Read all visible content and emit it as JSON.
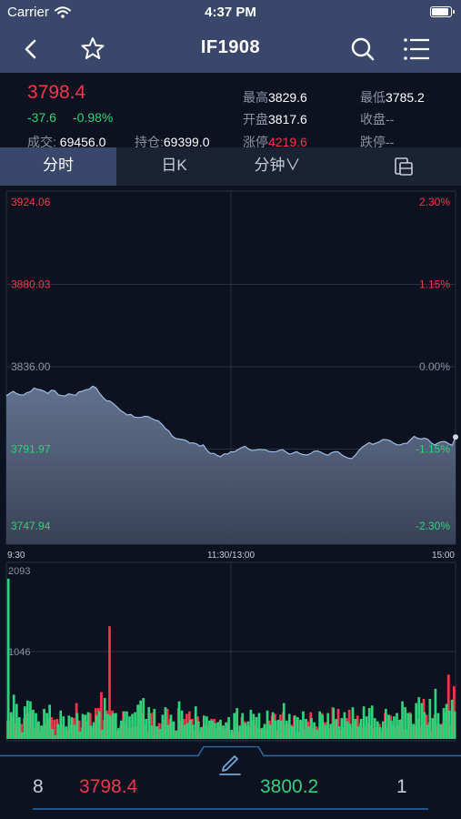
{
  "status_bar": {
    "carrier": "Carrier",
    "time": "4:37 PM",
    "battery_level": 0.95
  },
  "nav": {
    "title": "IF1908",
    "back_icon": "chevron-left-icon",
    "favorite_icon": "star-outline-icon",
    "search_icon": "search-icon",
    "menu_icon": "list-menu-icon"
  },
  "quote": {
    "price": "3798.4",
    "change": "-37.6",
    "change_pct": "-0.98%",
    "volume_label": "成交:",
    "volume": "69456.0",
    "oi_label": "持仓:",
    "oi": "69399.0",
    "high_label": "最高",
    "high": "3829.6",
    "low_label": "最低",
    "low": "3785.2",
    "open_label": "开盘",
    "open": "3817.6",
    "close_label": "收盘",
    "close": "--",
    "limit_up_label": "涨停",
    "limit_up": "4219.6",
    "limit_down_label": "跌停",
    "limit_down": "--"
  },
  "tabs": [
    {
      "label": "分时",
      "active": true
    },
    {
      "label": "日K",
      "active": false
    },
    {
      "label": "分钟∨",
      "active": false
    },
    {
      "label": "",
      "icon": "copy-layout-icon",
      "active": false
    }
  ],
  "colors": {
    "up": "#f0384b",
    "down": "#2fd27a",
    "header": "#39486a",
    "line": "#8fb4e6"
  },
  "chart_data": {
    "type": "area",
    "price_axis_ticks": [
      "3924.06",
      "3880.03",
      "3836.00",
      "3791.97",
      "3747.94"
    ],
    "price_axis_values": [
      3924.06,
      3880.03,
      3836.0,
      3791.97,
      3747.94
    ],
    "pct_axis_ticks": [
      "2.30%",
      "1.15%",
      "0.00%",
      "-1.15%",
      "-2.30%"
    ],
    "time_ticks": [
      "9:30",
      "11:30/13:00",
      "15:00"
    ],
    "ylim": [
      3747.94,
      3924.06
    ],
    "reference_price": 3836.0,
    "price_series": [
      3820.5,
      3821.8,
      3822.8,
      3821.6,
      3820.9,
      3821.0,
      3822.2,
      3822.6,
      3824.6,
      3824.0,
      3823.6,
      3822.9,
      3821.7,
      3823.4,
      3823.2,
      3821.0,
      3820.6,
      3820.4,
      3821.5,
      3821.1,
      3820.7,
      3822.5,
      3822.9,
      3823.7,
      3824.0,
      3825.6,
      3824.6,
      3821.8,
      3819.5,
      3817.8,
      3817.6,
      3816.2,
      3814.6,
      3812.7,
      3811.5,
      3810.2,
      3810.5,
      3809.1,
      3808.9,
      3808.9,
      3809.5,
      3809.4,
      3808.3,
      3807.5,
      3807.0,
      3805.3,
      3803.0,
      3801.7,
      3798.9,
      3797.6,
      3797.3,
      3797.1,
      3796.6,
      3795.2,
      3795.3,
      3794.8,
      3793.5,
      3794.2,
      3791.4,
      3789.7,
      3789.7,
      3788.6,
      3787.9,
      3789.4,
      3789.3,
      3790.5,
      3790.5,
      3791.7,
      3792.7,
      3793.5,
      3792.1,
      3791.3,
      3791.4,
      3791.8,
      3791.7,
      3791.6,
      3790.7,
      3790.5,
      3790.6,
      3791.3,
      3791.7,
      3790.3,
      3789.2,
      3789.9,
      3790.6,
      3789.5,
      3789.0,
      3788.8,
      3789.5,
      3790.8,
      3791.0,
      3790.3,
      3789.3,
      3788.7,
      3789.9,
      3790.6,
      3790.5,
      3788.9,
      3787.9,
      3787.1,
      3786.9,
      3788.7,
      3791.1,
      3793.0,
      3794.2,
      3795.4,
      3794.5,
      3795.2,
      3795.9,
      3797.1,
      3797.0,
      3796.5,
      3795.3,
      3794.3,
      3794.2,
      3795.0,
      3795.1,
      3797.0,
      3798.8,
      3797.8,
      3797.3,
      3797.8,
      3797.2,
      3795.2,
      3794.2,
      3795.3,
      3795.9,
      3795.9,
      3794.8,
      3794.0,
      3798.4
    ],
    "volume_ylim": [
      0,
      2093
    ],
    "volume_ticks": [
      "2093",
      "1046"
    ],
    "volume_up": [
      1920,
      320,
      530,
      420,
      260,
      80,
      390,
      460,
      450,
      350,
      310,
      210,
      160,
      360,
      310,
      410,
      120,
      40,
      180,
      340,
      270,
      150,
      280,
      260,
      170,
      310,
      90,
      300,
      290,
      320,
      160,
      200,
      280,
      330,
      110,
      490,
      300,
      280,
      310,
      310,
      130,
      220,
      330,
      330,
      270,
      300,
      320,
      410,
      460,
      490,
      240,
      380,
      160,
      360,
      150,
      120,
      290,
      380,
      170,
      290,
      210,
      100,
      450,
      340,
      170,
      190,
      230,
      170,
      390,
      210,
      140,
      280,
      270,
      220,
      220,
      190,
      200,
      230,
      160,
      200,
      260,
      110,
      310,
      370,
      160,
      310,
      190,
      210,
      350,
      300,
      260,
      310,
      130,
      180,
      340,
      170,
      320,
      220,
      230,
      220,
      430,
      220,
      300,
      150,
      280,
      260,
      230,
      330,
      240,
      150,
      250,
      200,
      110,
      330,
      290,
      170,
      310,
      180,
      370,
      240,
      150,
      250,
      320,
      210,
      180,
      380,
      240,
      150,
      240,
      390,
      270,
      370,
      400,
      250,
      210,
      140,
      210,
      360,
      290,
      220,
      270,
      310,
      230,
      450,
      380,
      310,
      300,
      180,
      430,
      500,
      430,
      320,
      170,
      480,
      250,
      600,
      310,
      170,
      370,
      420,
      340,
      470,
      330
    ],
    "volume_down": [
      220,
      210,
      290,
      190,
      250,
      180,
      250,
      290,
      310,
      330,
      120,
      190,
      90,
      150,
      180,
      240,
      260,
      230,
      240,
      160,
      170,
      130,
      110,
      170,
      250,
      430,
      220,
      140,
      280,
      210,
      310,
      130,
      370,
      370,
      560,
      230,
      340,
      1350,
      340,
      300,
      100,
      160,
      330,
      190,
      120,
      130,
      140,
      150,
      410,
      310,
      180,
      80,
      310,
      320,
      150,
      190,
      180,
      230,
      360,
      240,
      200,
      100,
      370,
      220,
      240,
      300,
      330,
      240,
      110,
      270,
      100,
      150,
      170,
      150,
      240,
      240,
      120,
      210,
      160,
      120,
      190,
      80,
      90,
      320,
      90,
      260,
      210,
      150,
      150,
      230,
      170,
      130,
      110,
      140,
      120,
      220,
      280,
      300,
      110,
      290,
      320,
      160,
      180,
      170,
      280,
      70,
      80,
      210,
      110,
      210,
      320,
      130,
      150,
      140,
      310,
      200,
      200,
      120,
      380,
      220,
      360,
      110,
      140,
      250,
      350,
      130,
      220,
      280,
      190,
      130,
      160,
      190,
      160,
      130,
      140,
      180,
      90,
      310,
      130,
      280,
      160,
      140,
      170,
      240,
      110,
      120,
      320,
      180,
      160,
      240,
      150,
      480,
      290,
      200,
      100,
      290,
      170,
      180,
      190,
      320,
      770,
      160,
      630
    ]
  },
  "bottom": {
    "left_qty": "8",
    "bid": "3798.4",
    "ask": "3800.2",
    "right_qty": "1",
    "edit_icon": "pencil-icon"
  }
}
